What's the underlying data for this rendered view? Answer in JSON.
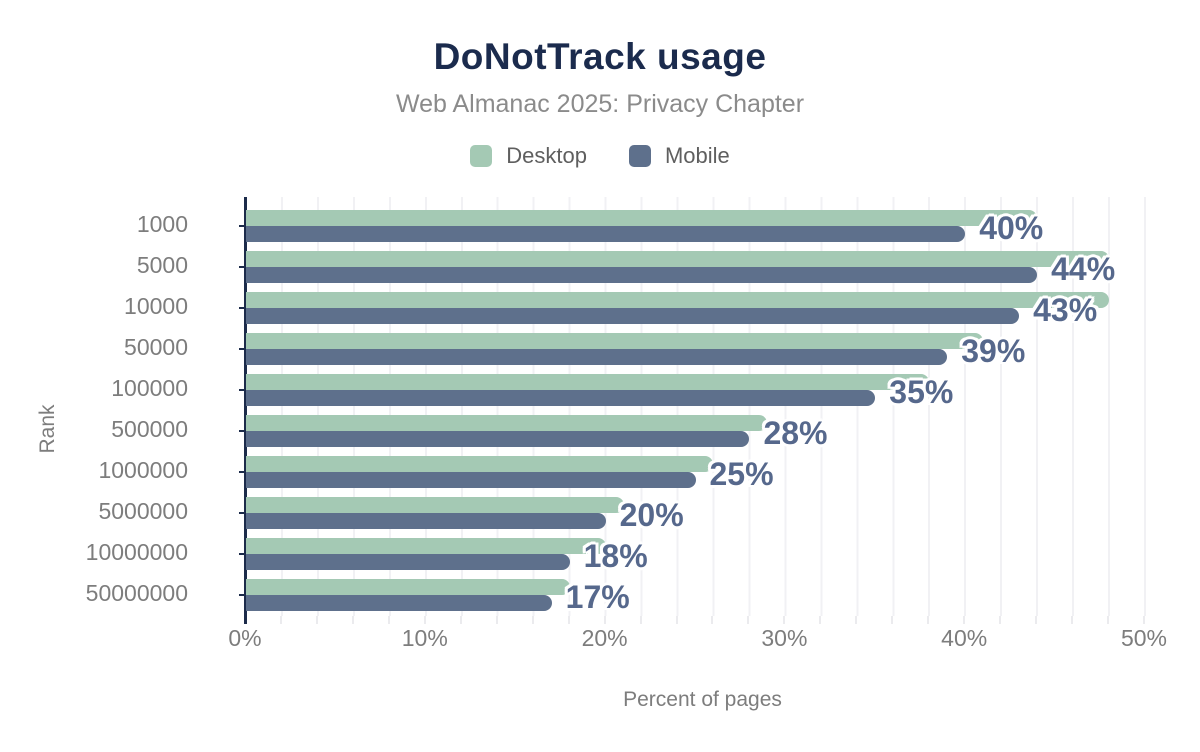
{
  "header": {
    "title": "DoNotTrack usage",
    "subtitle": "Web Almanac 2025: Privacy Chapter"
  },
  "legend": [
    {
      "label": "Desktop",
      "color": "#a4c9b4"
    },
    {
      "label": "Mobile",
      "color": "#5e708c"
    }
  ],
  "axes": {
    "x_title": "Percent of pages",
    "y_title": "Rank"
  },
  "colors": {
    "title": "#1b2b4d",
    "subtitle": "#8b8b8b",
    "axis_text": "#7d7d7d",
    "value_label": "#56688c",
    "gridline": "#f1f1f4",
    "axis_line": "#1c2b4a",
    "desktop_bar": "#a4c9b4",
    "mobile_bar": "#5e708c"
  },
  "chart_data": {
    "type": "bar",
    "orientation": "horizontal",
    "title": "DoNotTrack usage",
    "subtitle": "Web Almanac 2025: Privacy Chapter",
    "categories": [
      "1000",
      "5000",
      "10000",
      "50000",
      "100000",
      "500000",
      "1000000",
      "5000000",
      "10000000",
      "50000000"
    ],
    "series": [
      {
        "name": "Desktop",
        "color": "#a4c9b4",
        "values": [
          44,
          48,
          48,
          41,
          38,
          29,
          26,
          21,
          20,
          18
        ]
      },
      {
        "name": "Mobile",
        "color": "#5e708c",
        "values": [
          40,
          44,
          43,
          39,
          35,
          28,
          25,
          20,
          18,
          17
        ]
      }
    ],
    "data_labels": [
      "40%",
      "44%",
      "43%",
      "39%",
      "35%",
      "28%",
      "25%",
      "20%",
      "18%",
      "17%"
    ],
    "data_labels_series": "Mobile",
    "xlabel": "Percent of pages",
    "ylabel": "Rank",
    "xlim": [
      0,
      50
    ],
    "x_ticks": [
      "0%",
      "10%",
      "20%",
      "30%",
      "40%",
      "50%"
    ],
    "x_tick_values": [
      0,
      10,
      20,
      30,
      40,
      50
    ],
    "grid": "vertical minor gridlines every 2%",
    "legend_position": "top center"
  }
}
